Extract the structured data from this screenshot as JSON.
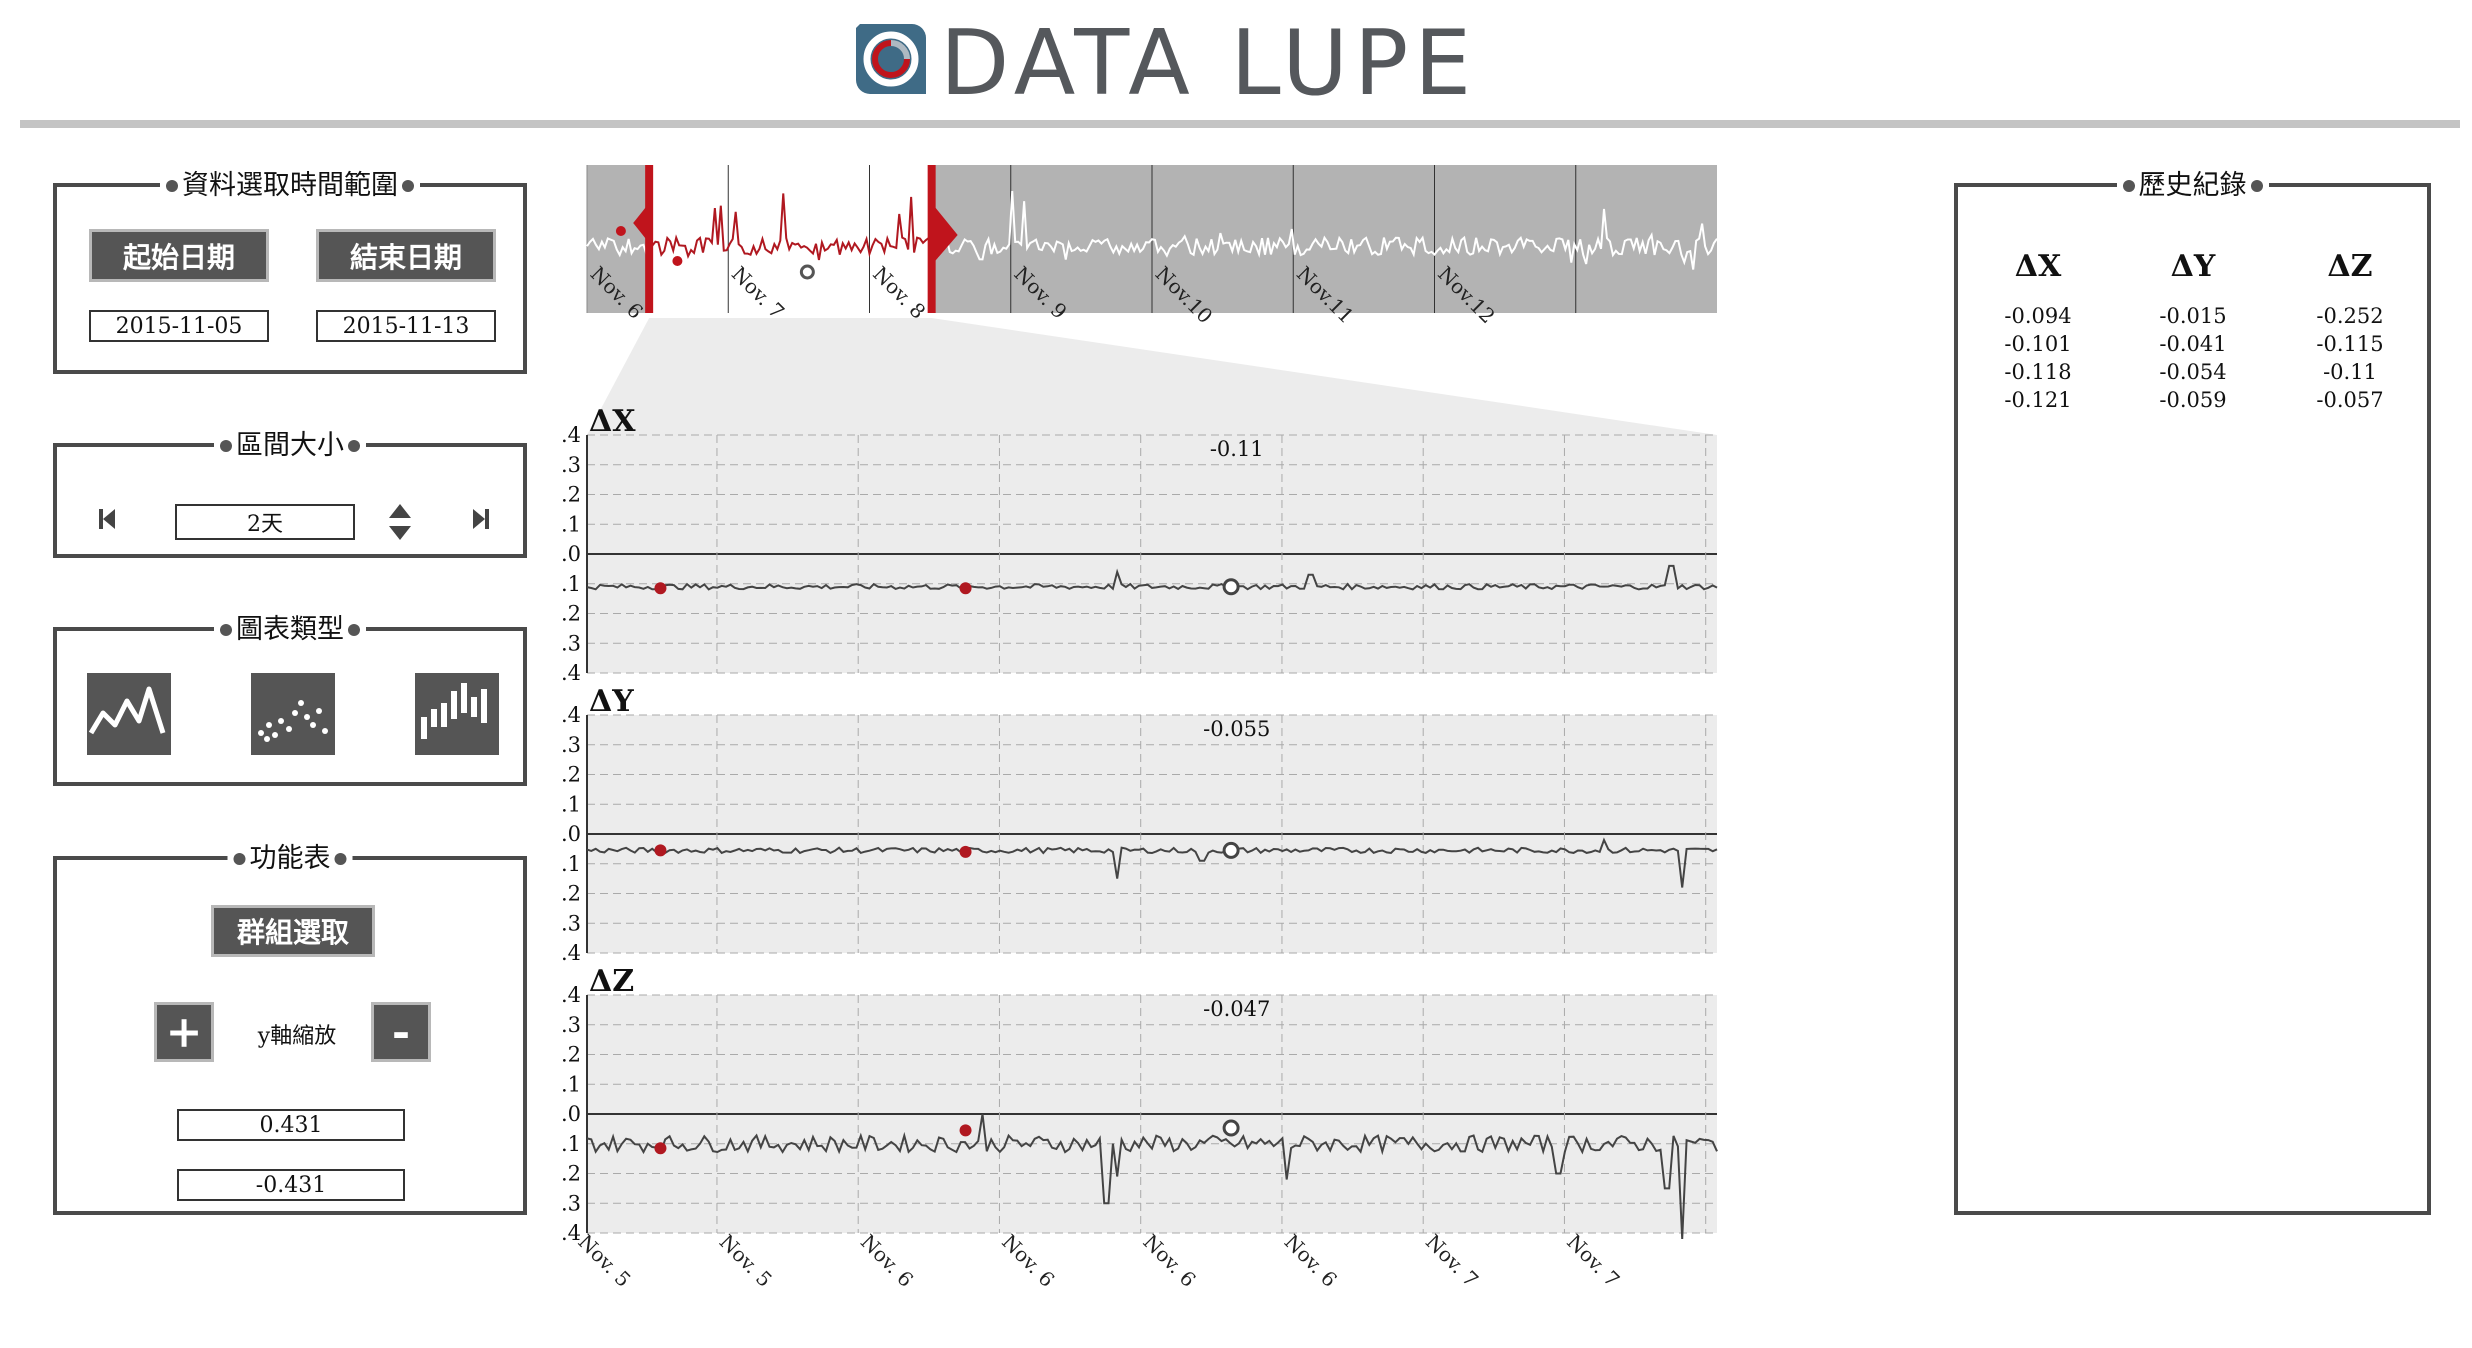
{
  "app": {
    "title": "DATA LUPE"
  },
  "date_range": {
    "legend": "資料選取時間範圍",
    "start_label": "起始日期",
    "end_label": "結束日期",
    "start_value": "2015-11-05",
    "end_value": "2015-11-13"
  },
  "interval": {
    "legend": "區間大小",
    "value": "2天"
  },
  "chart_type": {
    "legend": "圖表類型",
    "options": [
      "line-chart-icon",
      "scatter-chart-icon",
      "bar-chart-icon"
    ]
  },
  "functions": {
    "legend": "功能表",
    "group_select_label": "群組選取",
    "plus_label": "+",
    "minus_label": "-",
    "y_zoom_label": "y軸縮放",
    "y_max": "0.431",
    "y_min": "-0.431"
  },
  "history": {
    "legend": "歷史紀錄",
    "columns": [
      "ΔX",
      "ΔY",
      "ΔZ"
    ],
    "rows": [
      [
        "-0.094",
        "-0.015",
        "-0.252"
      ],
      [
        "-0.101",
        "-0.041",
        "-0.115"
      ],
      [
        "-0.118",
        "-0.054",
        "-0.11"
      ],
      [
        "-0.121",
        "-0.059",
        "-0.057"
      ]
    ]
  },
  "overview": {
    "tick_labels": [
      "Nov. 6",
      "Nov. 7",
      "Nov. 8",
      "Nov. 9",
      "Nov.10",
      "Nov.11",
      "Nov.12"
    ],
    "brush_color": "#c0141c",
    "selected_line_color": "#b01820",
    "background_color": "#b3b3b3"
  },
  "chart_data": {
    "type": "line",
    "x_tick_labels": [
      "Nov. 5",
      "Nov. 5",
      "Nov. 6",
      "Nov. 6",
      "Nov. 6",
      "Nov. 6",
      "Nov. 7",
      "Nov. 7"
    ],
    "ylim": [
      -0.4,
      0.4
    ],
    "y_ticks": [
      "0.4",
      "0.3",
      "0.2",
      "0.1",
      "0.0",
      "-0.1",
      "-0.2",
      "-0.3",
      "-0.4"
    ],
    "grid": true,
    "series": [
      {
        "name": "ΔX",
        "baseline": -0.11,
        "readout": "-0.11",
        "spikes": [
          [
            0.47,
            -0.06
          ],
          [
            0.64,
            -0.07
          ],
          [
            0.96,
            -0.04
          ]
        ],
        "markers": [
          [
            0.065,
            -0.115
          ],
          [
            0.335,
            -0.115
          ]
        ],
        "cursor": [
          0.57,
          -0.11
        ]
      },
      {
        "name": "ΔY",
        "baseline": -0.055,
        "readout": "-0.055",
        "spikes": [
          [
            0.47,
            -0.15
          ],
          [
            0.545,
            -0.09
          ],
          [
            0.9,
            -0.02
          ],
          [
            0.97,
            -0.18
          ]
        ],
        "markers": [
          [
            0.065,
            -0.055
          ],
          [
            0.335,
            -0.06
          ]
        ],
        "cursor": [
          0.57,
          -0.055
        ]
      },
      {
        "name": "ΔZ",
        "baseline": -0.1,
        "readout": "-0.047",
        "spikes": [
          [
            0.35,
            0.0
          ],
          [
            0.46,
            -0.3
          ],
          [
            0.47,
            -0.21
          ],
          [
            0.62,
            -0.22
          ],
          [
            0.86,
            -0.2
          ],
          [
            0.97,
            -0.42
          ],
          [
            0.955,
            -0.25
          ]
        ],
        "markers": [
          [
            0.065,
            -0.115
          ],
          [
            0.335,
            -0.055
          ]
        ],
        "cursor": [
          0.57,
          -0.047
        ]
      }
    ]
  }
}
